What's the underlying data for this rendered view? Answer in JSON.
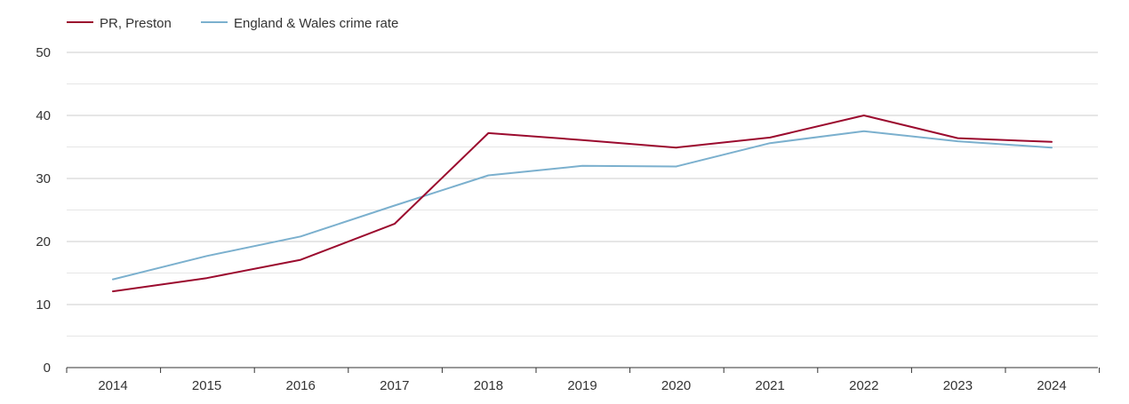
{
  "colors": {
    "series_preston": "#9b0a2e",
    "series_england_wales": "#7bb0ce",
    "grid_major": "#cccccc",
    "grid_minor": "#e6e6e6",
    "axis": "#333333",
    "text": "#333333"
  },
  "chart_data": {
    "type": "line",
    "title": "",
    "xlabel": "",
    "ylabel": "",
    "legend_position": "top-left",
    "categories": [
      "2014",
      "2015",
      "2016",
      "2017",
      "2018",
      "2019",
      "2020",
      "2021",
      "2022",
      "2023",
      "2024"
    ],
    "y_ticks": [
      "0",
      "10",
      "20",
      "30",
      "40",
      "50"
    ],
    "ylim": [
      0,
      50
    ],
    "grid": true,
    "series": [
      {
        "name": "PR, Preston",
        "color": "#9b0a2e",
        "values": [
          12.1,
          14.2,
          17.1,
          22.8,
          37.2,
          36.1,
          34.9,
          36.5,
          40.0,
          36.4,
          35.8
        ]
      },
      {
        "name": "England & Wales crime rate",
        "color": "#7bb0ce",
        "values": [
          14.0,
          17.7,
          20.8,
          25.7,
          30.5,
          32.0,
          31.9,
          35.6,
          37.5,
          35.9,
          34.9
        ]
      }
    ]
  }
}
